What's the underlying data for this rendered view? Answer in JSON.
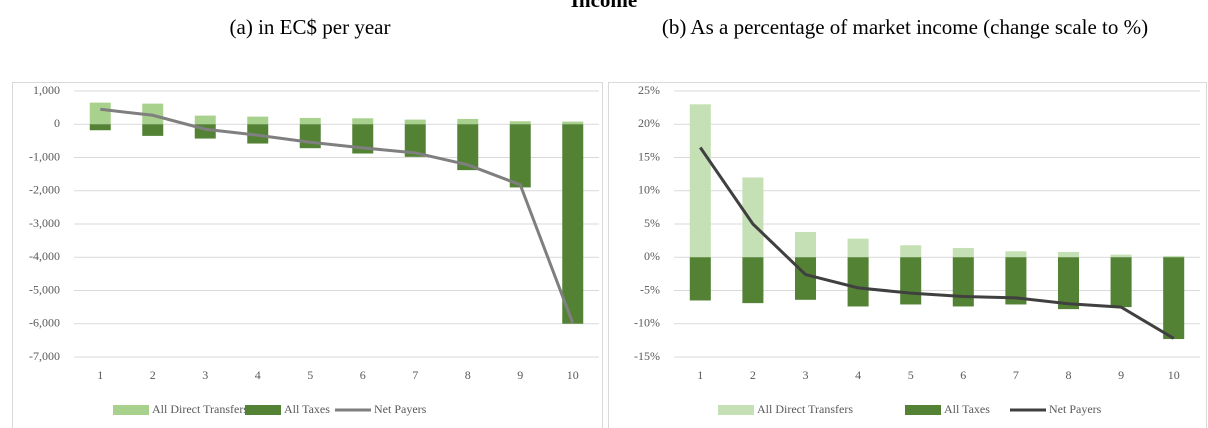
{
  "page_title": "Income",
  "chart_data": [
    {
      "type": "bar",
      "title": "(a) in EC$ per year",
      "categories": [
        "1",
        "2",
        "3",
        "4",
        "5",
        "6",
        "7",
        "8",
        "9",
        "10"
      ],
      "series": [
        {
          "name": "All Direct Transfers",
          "type": "bar",
          "color": "#a9d18e",
          "values": [
            650,
            620,
            260,
            230,
            190,
            180,
            140,
            160,
            90,
            80
          ]
        },
        {
          "name": "All Taxes",
          "type": "bar",
          "color": "#548235",
          "values": [
            -180,
            -350,
            -430,
            -580,
            -720,
            -880,
            -980,
            -1380,
            -1900,
            -6000
          ]
        },
        {
          "name": "Net Payers",
          "type": "line",
          "color": "#7f7f7f",
          "values": [
            450,
            270,
            -150,
            -330,
            -540,
            -710,
            -860,
            -1220,
            -1820,
            -5980
          ]
        }
      ],
      "ylim": [
        -7000,
        1000
      ],
      "yticks": [
        {
          "value": -7000,
          "label": "-7,000"
        },
        {
          "value": -6000,
          "label": "-6,000"
        },
        {
          "value": -5000,
          "label": "-5,000"
        },
        {
          "value": -4000,
          "label": "-4,000"
        },
        {
          "value": -3000,
          "label": "-3,000"
        },
        {
          "value": -2000,
          "label": "-2,000"
        },
        {
          "value": -1000,
          "label": "-1,000"
        },
        0,
        {
          "value": 1000,
          "label": "1,000"
        }
      ],
      "grid": true,
      "legend": "bottom"
    },
    {
      "type": "bar",
      "title": "(b) As a percentage of market income (change scale to %)",
      "categories": [
        "1",
        "2",
        "3",
        "4",
        "5",
        "6",
        "7",
        "8",
        "9",
        "10"
      ],
      "series": [
        {
          "name": "All Direct Transfers",
          "type": "bar",
          "color": "#c5e0b4",
          "values": [
            23,
            12,
            3.8,
            2.8,
            1.8,
            1.4,
            0.9,
            0.8,
            0.4,
            0.2
          ]
        },
        {
          "name": "All Taxes",
          "type": "bar",
          "color": "#548235",
          "values": [
            -6.5,
            -6.9,
            -6.4,
            -7.4,
            -7.1,
            -7.4,
            -7.1,
            -7.8,
            -7.5,
            -12.3
          ]
        },
        {
          "name": "Net Payers",
          "type": "line",
          "color": "#404040",
          "values": [
            16.5,
            5,
            -2.6,
            -4.6,
            -5.4,
            -5.9,
            -6.1,
            -7,
            -7.5,
            -12.2
          ]
        }
      ],
      "ylim": [
        -15,
        25
      ],
      "yticks": [
        {
          "value": -15,
          "label": "-15%"
        },
        {
          "value": -10,
          "label": "-10%"
        },
        {
          "value": -5,
          "label": "-5%"
        },
        {
          "value": 0,
          "label": "0%"
        },
        {
          "value": 5,
          "label": "5%"
        },
        {
          "value": 10,
          "label": "10%"
        },
        {
          "value": 15,
          "label": "15%"
        },
        {
          "value": 20,
          "label": "20%"
        },
        {
          "value": 25,
          "label": "25%"
        }
      ],
      "grid": true,
      "legend": "bottom"
    }
  ]
}
